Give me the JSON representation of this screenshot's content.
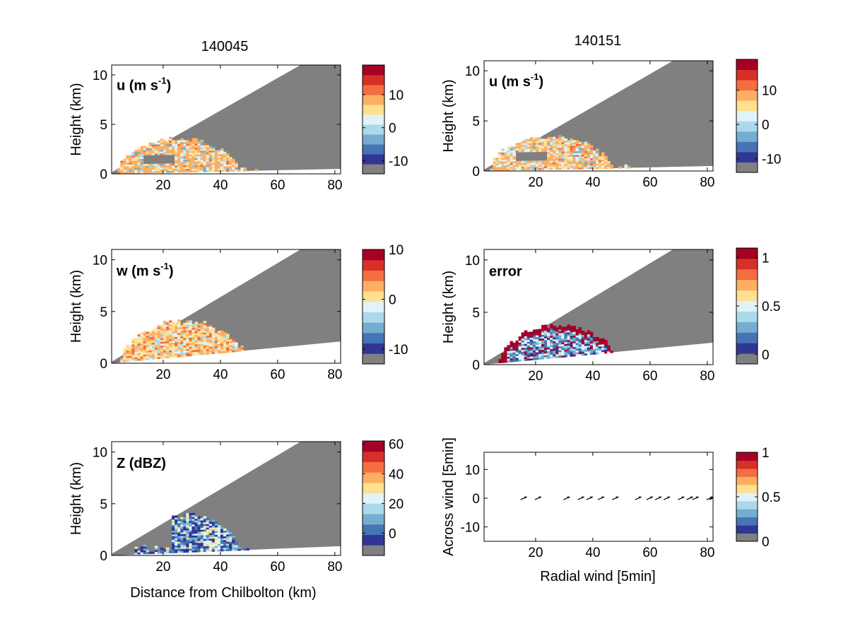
{
  "figure": {
    "column_titles": [
      "140045",
      "140151"
    ],
    "xlabel_bottom_left": "Distance from Chilbolton (km)",
    "xlabel_bottom_right": "Radial wind [5min]",
    "ylabel_height": "Height (km)",
    "ylabel_across": "Across wind [5min]"
  },
  "colors": {
    "masked_gray": "#808080",
    "palette": [
      "#313695",
      "#4575b4",
      "#74add1",
      "#abd9e9",
      "#e0f3f8",
      "#fee090",
      "#fdae61",
      "#f46d43",
      "#d73027",
      "#a50026"
    ]
  },
  "chart_data": [
    {
      "id": "u_140045",
      "type": "heatmap",
      "column_title": "140045",
      "panel_label": "u (m s",
      "panel_label_sup": "-1",
      "panel_label_tail": ")",
      "xlim": [
        2,
        82
      ],
      "ylim": [
        0,
        11
      ],
      "xticks": [
        20,
        40,
        60,
        80
      ],
      "yticks": [
        0,
        5,
        10
      ],
      "ylabel": "Height (km)",
      "xlabel": "",
      "colorbar": {
        "min": -14,
        "max": 19,
        "ticks": [
          -10,
          0,
          10
        ],
        "bottom_gray": true
      },
      "beam_top_slope": 0.2,
      "blank_bottom_slope": 0.005,
      "echo": {
        "x_start": 4,
        "x_end": 52,
        "top_km": 3.5,
        "dominant": "orange-lightblue"
      }
    },
    {
      "id": "u_140151",
      "type": "heatmap",
      "column_title": "140151",
      "panel_label": "u (m s",
      "panel_label_sup": "-1",
      "panel_label_tail": ")",
      "xlim": [
        2,
        82
      ],
      "ylim": [
        0,
        11
      ],
      "xticks": [
        20,
        40,
        60,
        80
      ],
      "yticks": [
        0,
        5,
        10
      ],
      "ylabel": "Height (km)",
      "xlabel": "",
      "colorbar": {
        "min": -14,
        "max": 19,
        "ticks": [
          -10,
          0,
          10
        ],
        "bottom_gray": true
      },
      "beam_top_slope": 0.2,
      "blank_bottom_slope": 0.005,
      "echo": {
        "x_start": 4,
        "x_end": 52,
        "top_km": 3.4,
        "dominant": "orange-lightblue"
      }
    },
    {
      "id": "w_140045",
      "type": "heatmap",
      "panel_label": "w (m s",
      "panel_label_sup": "-1",
      "panel_label_tail": ")",
      "xlim": [
        2,
        82
      ],
      "ylim": [
        0,
        11
      ],
      "xticks": [
        20,
        40,
        60,
        80
      ],
      "yticks": [
        0,
        5,
        10
      ],
      "ylabel": "Height (km)",
      "xlabel": "",
      "colorbar": {
        "min": -13,
        "max": 10,
        "ticks": [
          -10,
          0,
          10
        ],
        "bottom_gray": true
      },
      "beam_top_slope": 0.2,
      "blank_bottom_slope": 0.025,
      "echo": {
        "x_start": 5,
        "x_end": 55,
        "top_km": 4.0,
        "dominant": "yellow-orange"
      }
    },
    {
      "id": "error_140151",
      "type": "heatmap",
      "panel_label": "error",
      "panel_label_sup": "",
      "panel_label_tail": "",
      "xlim": [
        2,
        82
      ],
      "ylim": [
        0,
        11
      ],
      "xticks": [
        20,
        40,
        60,
        80
      ],
      "yticks": [
        0,
        5,
        10
      ],
      "ylabel": "Height (km)",
      "xlabel": "",
      "colorbar": {
        "min": -0.1,
        "max": 1.1,
        "ticks": [
          0,
          0.5,
          1
        ],
        "bottom_gray": true
      },
      "beam_top_slope": 0.2,
      "blank_bottom_slope": 0.025,
      "echo": {
        "x_start": 7,
        "x_end": 54,
        "top_km": 3.7,
        "dominant": "blue-red-edge"
      }
    },
    {
      "id": "Z_140045",
      "type": "heatmap",
      "panel_label": "Z (dBZ)",
      "panel_label_sup": "",
      "panel_label_tail": "",
      "xlim": [
        2,
        82
      ],
      "ylim": [
        0,
        11
      ],
      "xticks": [
        20,
        40,
        60,
        80
      ],
      "yticks": [
        0,
        5,
        10
      ],
      "ylabel": "Height (km)",
      "xlabel": "Distance from Chilbolton (km)",
      "colorbar": {
        "min": -15,
        "max": 62,
        "ticks": [
          0,
          20,
          40,
          60
        ],
        "bottom_gray": true
      },
      "beam_top_slope": 0.2,
      "blank_bottom_slope": 0.01,
      "echo": {
        "x_start": 10,
        "x_end": 52,
        "top_km": 3.8,
        "dominant": "blue"
      }
    },
    {
      "id": "quiver",
      "type": "scatter",
      "panel_label": "",
      "xlim": [
        2,
        82
      ],
      "ylim": [
        -15,
        16
      ],
      "xticks": [
        20,
        40,
        60,
        80
      ],
      "yticks": [
        -10,
        0,
        10
      ],
      "xlabel": "Radial wind [5min]",
      "ylabel": "Across wind [5min]",
      "colorbar": {
        "min": 0,
        "max": 1,
        "ticks": [
          0,
          0.5,
          1
        ],
        "bottom_gray": true
      },
      "arrows_x": [
        16,
        21,
        31,
        36,
        39,
        43,
        48,
        56,
        60,
        63,
        66,
        71,
        74,
        76,
        81,
        82
      ],
      "arrows_y": [
        0,
        0,
        0,
        0,
        0,
        0,
        0,
        0,
        0,
        0,
        0,
        0,
        0,
        0,
        0,
        0
      ]
    }
  ]
}
